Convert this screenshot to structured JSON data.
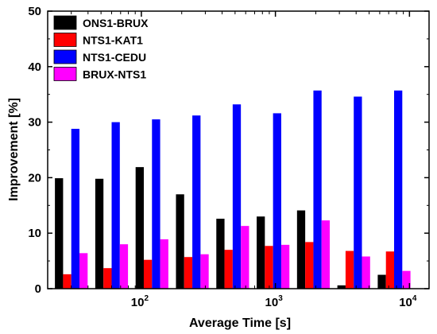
{
  "chart_data": {
    "type": "bar",
    "xlabel": "Average Time [s]",
    "ylabel": "Improvement [%]",
    "ylim": [
      0,
      50
    ],
    "yticks": [
      0,
      10,
      20,
      30,
      40,
      50
    ],
    "xscale": "log",
    "xlim": [
      20,
      14000
    ],
    "xticks": [
      {
        "value": 100,
        "base": "10",
        "exp": "2"
      },
      {
        "value": 1000,
        "base": "10",
        "exp": "3"
      },
      {
        "value": 10000,
        "base": "10",
        "exp": "4"
      }
    ],
    "categories": [
      30,
      60,
      120,
      240,
      480,
      960,
      1920,
      3840,
      7680
    ],
    "series": [
      {
        "name": "ONS1-BRUX",
        "color": "#000000",
        "values": [
          19.9,
          19.8,
          21.9,
          17.0,
          12.6,
          13.0,
          14.1,
          0.6,
          2.5
        ]
      },
      {
        "name": "NTS1-KAT1",
        "color": "#ff0000",
        "values": [
          2.6,
          3.7,
          5.2,
          5.7,
          7.0,
          7.7,
          8.4,
          6.8,
          6.7
        ]
      },
      {
        "name": "NTS1-CEDU",
        "color": "#0000ff",
        "values": [
          28.8,
          30.0,
          30.5,
          31.2,
          33.2,
          31.6,
          35.7,
          34.6,
          35.7
        ]
      },
      {
        "name": "BRUX-NTS1",
        "color": "#ff00ff",
        "values": [
          6.4,
          8.0,
          8.9,
          6.2,
          11.3,
          7.9,
          12.3,
          5.8,
          3.2
        ]
      }
    ],
    "legend": {
      "position": "top-left"
    },
    "grid": false
  }
}
